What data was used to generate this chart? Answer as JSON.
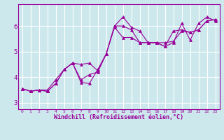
{
  "xlabel": "Windchill (Refroidissement éolien,°C)",
  "bg_color": "#cce8ec",
  "grid_color": "#ffffff",
  "line_color": "#990099",
  "xlim": [
    -0.5,
    23.5
  ],
  "ylim": [
    2.75,
    6.85
  ],
  "xticks": [
    0,
    1,
    2,
    3,
    4,
    5,
    6,
    7,
    8,
    9,
    10,
    11,
    12,
    13,
    14,
    15,
    16,
    17,
    18,
    19,
    20,
    21,
    22,
    23
  ],
  "yticks": [
    3,
    4,
    5,
    6
  ],
  "series": [
    [
      3.55,
      3.45,
      3.5,
      3.45,
      3.75,
      4.3,
      4.55,
      4.5,
      4.55,
      4.25,
      4.9,
      6.0,
      6.35,
      5.95,
      5.8,
      5.35,
      5.35,
      5.35,
      5.4,
      5.8,
      5.75,
      5.85,
      6.2,
      6.25
    ],
    [
      3.55,
      3.45,
      3.5,
      3.5,
      3.9,
      4.3,
      4.55,
      3.8,
      3.75,
      4.3,
      4.9,
      5.95,
      5.55,
      5.55,
      5.35,
      5.35,
      5.35,
      5.2,
      5.35,
      6.1,
      5.45,
      6.1,
      6.35,
      6.2
    ],
    [
      3.55,
      3.45,
      3.5,
      3.45,
      3.75,
      4.3,
      4.55,
      3.9,
      4.1,
      4.2,
      4.9,
      6.0,
      6.0,
      5.85,
      5.35,
      5.35,
      5.35,
      5.2,
      5.8,
      5.85,
      5.75,
      5.85,
      6.2,
      6.25
    ]
  ]
}
